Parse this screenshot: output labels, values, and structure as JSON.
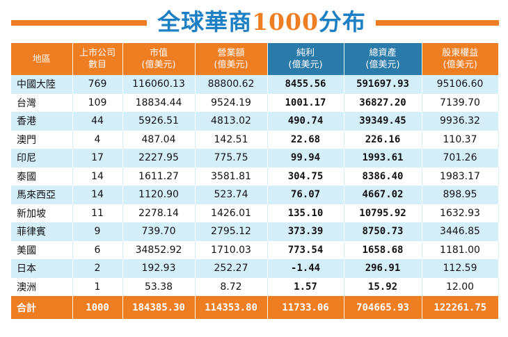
{
  "title": {
    "part_cn": "全球華商",
    "part_num": "1000",
    "part_tail": "分布"
  },
  "table": {
    "headers": [
      {
        "line1": "地區",
        "line2": ""
      },
      {
        "line1": "上市公司",
        "line2": "數目"
      },
      {
        "line1": "市值",
        "line2": "(億美元)"
      },
      {
        "line1": "營業額",
        "line2": "(億美元)"
      },
      {
        "line1": "純利",
        "line2": "(億美元)"
      },
      {
        "line1": "總資產",
        "line2": "(億美元)"
      },
      {
        "line1": "股東權益",
        "line2": "(億美元)"
      }
    ],
    "rows": [
      [
        "中國大陸",
        "769",
        "116060.13",
        "88800.62",
        "8455.56",
        "591697.93",
        "95106.60"
      ],
      [
        "台灣",
        "109",
        "18834.44",
        "9524.19",
        "1001.17",
        "36827.20",
        "7139.70"
      ],
      [
        "香港",
        "44",
        "5926.51",
        "4813.02",
        "490.74",
        "39349.45",
        "9936.32"
      ],
      [
        "澳門",
        "4",
        "487.04",
        "142.51",
        "22.68",
        "226.16",
        "110.37"
      ],
      [
        "印尼",
        "17",
        "2227.95",
        "775.75",
        "99.94",
        "1993.61",
        "701.26"
      ],
      [
        "泰國",
        "14",
        "1611.27",
        "3581.81",
        "304.75",
        "8386.40",
        "1983.17"
      ],
      [
        "馬來西亞",
        "14",
        "1120.90",
        "523.74",
        "76.07",
        "4667.02",
        "898.95"
      ],
      [
        "新加坡",
        "11",
        "2278.14",
        "1426.01",
        "135.10",
        "10795.92",
        "1632.93"
      ],
      [
        "菲律賓",
        "9",
        "739.70",
        "2795.12",
        "373.39",
        "8750.73",
        "3446.85"
      ],
      [
        "美國",
        "6",
        "34852.92",
        "1710.03",
        "773.54",
        "1658.68",
        "1181.00"
      ],
      [
        "日本",
        "2",
        "192.93",
        "252.27",
        "-1.44",
        "296.91",
        "112.59"
      ],
      [
        "澳洲",
        "1",
        "53.38",
        "8.72",
        "1.57",
        "15.92",
        "12.00"
      ]
    ],
    "total": [
      "合計",
      "1000",
      "184385.30",
      "114353.80",
      "11733.06",
      "704665.93",
      "122261.75"
    ]
  },
  "colors": {
    "accent_orange": "#ef7d22",
    "header_blue": "#2a7aaa",
    "title_blue": "#1d7fc4",
    "row_stripe": "#d4eefa"
  }
}
